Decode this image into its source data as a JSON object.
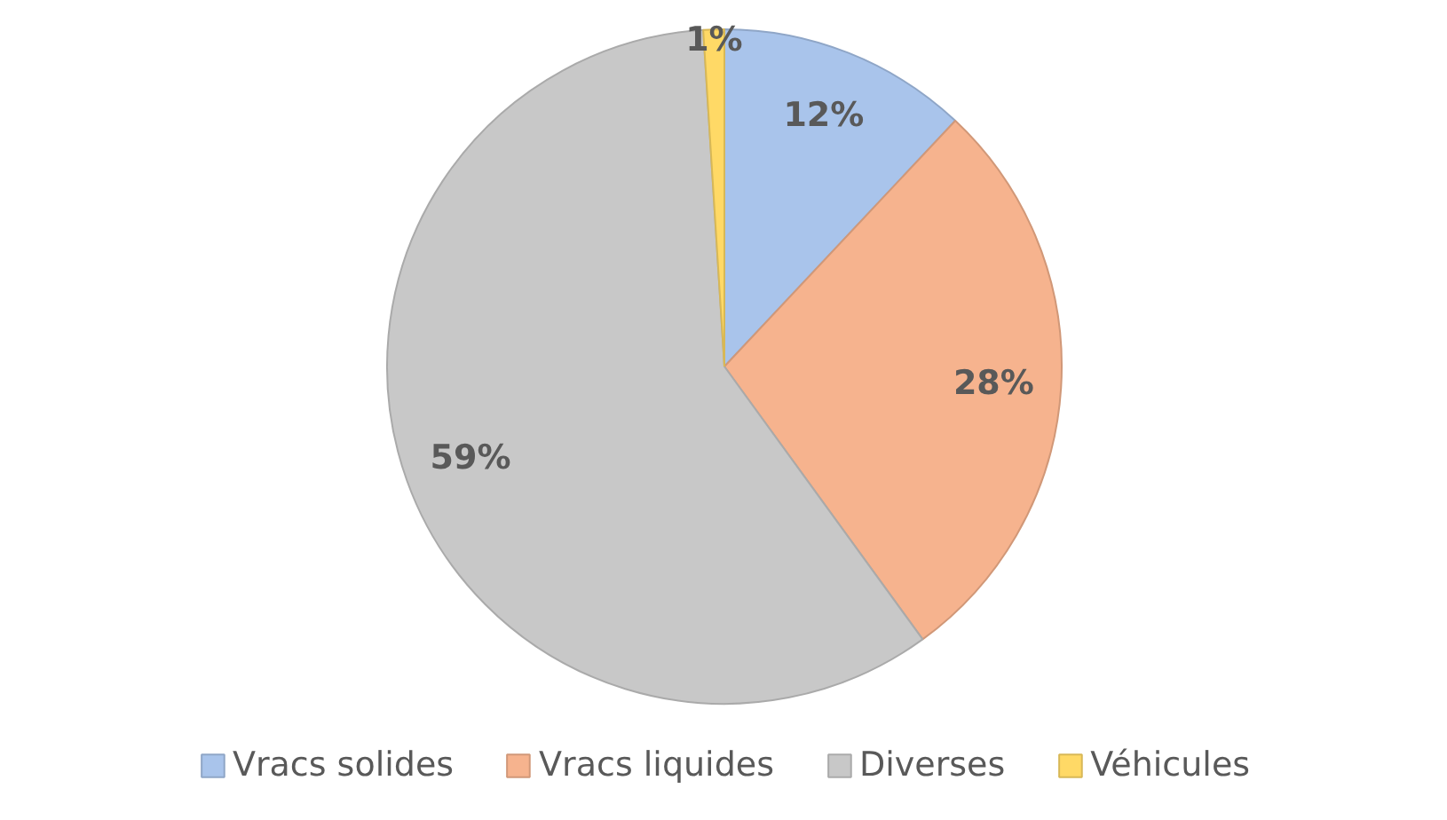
{
  "chart_data": {
    "type": "pie",
    "categories": [
      "Vracs solides",
      "Vracs liquides",
      "Diverses",
      "Véhicules"
    ],
    "values": [
      12,
      28,
      59,
      1
    ],
    "colors": [
      "#a9c4eb",
      "#f6b38e",
      "#c8c8c8",
      "#ffd966"
    ],
    "value_labels": [
      "12%",
      "28%",
      "59%",
      "1%"
    ],
    "legend": "bottom"
  }
}
